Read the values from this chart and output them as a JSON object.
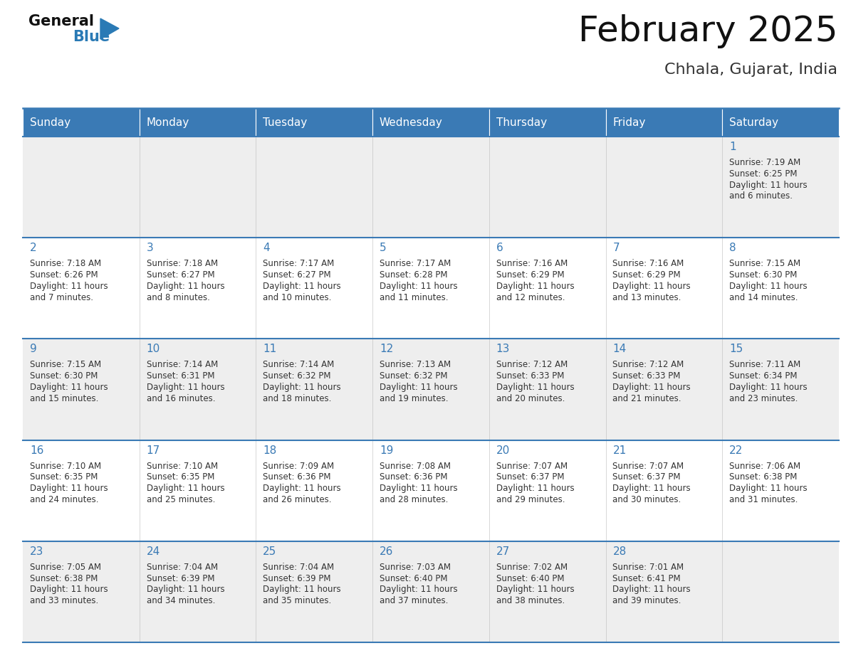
{
  "title": "February 2025",
  "subtitle": "Chhala, Gujarat, India",
  "header_bg_color": "#3a7ab5",
  "header_text_color": "#ffffff",
  "day_names": [
    "Sunday",
    "Monday",
    "Tuesday",
    "Wednesday",
    "Thursday",
    "Friday",
    "Saturday"
  ],
  "cell_bg_gray": "#eeeeee",
  "cell_bg_white": "#ffffff",
  "cell_border_color": "#3a7ab5",
  "day_number_color": "#3a7ab5",
  "info_text_color": "#333333",
  "title_color": "#111111",
  "subtitle_color": "#333333",
  "logo_general_color": "#111111",
  "logo_blue_color": "#2a7ab5",
  "calendar_data": [
    [
      null,
      null,
      null,
      null,
      null,
      null,
      {
        "day": 1,
        "sunrise": "7:19 AM",
        "sunset": "6:25 PM",
        "daylight": "11 hours and 6 minutes"
      }
    ],
    [
      {
        "day": 2,
        "sunrise": "7:18 AM",
        "sunset": "6:26 PM",
        "daylight": "11 hours and 7 minutes"
      },
      {
        "day": 3,
        "sunrise": "7:18 AM",
        "sunset": "6:27 PM",
        "daylight": "11 hours and 8 minutes"
      },
      {
        "day": 4,
        "sunrise": "7:17 AM",
        "sunset": "6:27 PM",
        "daylight": "11 hours and 10 minutes"
      },
      {
        "day": 5,
        "sunrise": "7:17 AM",
        "sunset": "6:28 PM",
        "daylight": "11 hours and 11 minutes"
      },
      {
        "day": 6,
        "sunrise": "7:16 AM",
        "sunset": "6:29 PM",
        "daylight": "11 hours and 12 minutes"
      },
      {
        "day": 7,
        "sunrise": "7:16 AM",
        "sunset": "6:29 PM",
        "daylight": "11 hours and 13 minutes"
      },
      {
        "day": 8,
        "sunrise": "7:15 AM",
        "sunset": "6:30 PM",
        "daylight": "11 hours and 14 minutes"
      }
    ],
    [
      {
        "day": 9,
        "sunrise": "7:15 AM",
        "sunset": "6:30 PM",
        "daylight": "11 hours and 15 minutes"
      },
      {
        "day": 10,
        "sunrise": "7:14 AM",
        "sunset": "6:31 PM",
        "daylight": "11 hours and 16 minutes"
      },
      {
        "day": 11,
        "sunrise": "7:14 AM",
        "sunset": "6:32 PM",
        "daylight": "11 hours and 18 minutes"
      },
      {
        "day": 12,
        "sunrise": "7:13 AM",
        "sunset": "6:32 PM",
        "daylight": "11 hours and 19 minutes"
      },
      {
        "day": 13,
        "sunrise": "7:12 AM",
        "sunset": "6:33 PM",
        "daylight": "11 hours and 20 minutes"
      },
      {
        "day": 14,
        "sunrise": "7:12 AM",
        "sunset": "6:33 PM",
        "daylight": "11 hours and 21 minutes"
      },
      {
        "day": 15,
        "sunrise": "7:11 AM",
        "sunset": "6:34 PM",
        "daylight": "11 hours and 23 minutes"
      }
    ],
    [
      {
        "day": 16,
        "sunrise": "7:10 AM",
        "sunset": "6:35 PM",
        "daylight": "11 hours and 24 minutes"
      },
      {
        "day": 17,
        "sunrise": "7:10 AM",
        "sunset": "6:35 PM",
        "daylight": "11 hours and 25 minutes"
      },
      {
        "day": 18,
        "sunrise": "7:09 AM",
        "sunset": "6:36 PM",
        "daylight": "11 hours and 26 minutes"
      },
      {
        "day": 19,
        "sunrise": "7:08 AM",
        "sunset": "6:36 PM",
        "daylight": "11 hours and 28 minutes"
      },
      {
        "day": 20,
        "sunrise": "7:07 AM",
        "sunset": "6:37 PM",
        "daylight": "11 hours and 29 minutes"
      },
      {
        "day": 21,
        "sunrise": "7:07 AM",
        "sunset": "6:37 PM",
        "daylight": "11 hours and 30 minutes"
      },
      {
        "day": 22,
        "sunrise": "7:06 AM",
        "sunset": "6:38 PM",
        "daylight": "11 hours and 31 minutes"
      }
    ],
    [
      {
        "day": 23,
        "sunrise": "7:05 AM",
        "sunset": "6:38 PM",
        "daylight": "11 hours and 33 minutes"
      },
      {
        "day": 24,
        "sunrise": "7:04 AM",
        "sunset": "6:39 PM",
        "daylight": "11 hours and 34 minutes"
      },
      {
        "day": 25,
        "sunrise": "7:04 AM",
        "sunset": "6:39 PM",
        "daylight": "11 hours and 35 minutes"
      },
      {
        "day": 26,
        "sunrise": "7:03 AM",
        "sunset": "6:40 PM",
        "daylight": "11 hours and 37 minutes"
      },
      {
        "day": 27,
        "sunrise": "7:02 AM",
        "sunset": "6:40 PM",
        "daylight": "11 hours and 38 minutes"
      },
      {
        "day": 28,
        "sunrise": "7:01 AM",
        "sunset": "6:41 PM",
        "daylight": "11 hours and 39 minutes"
      },
      null
    ]
  ]
}
